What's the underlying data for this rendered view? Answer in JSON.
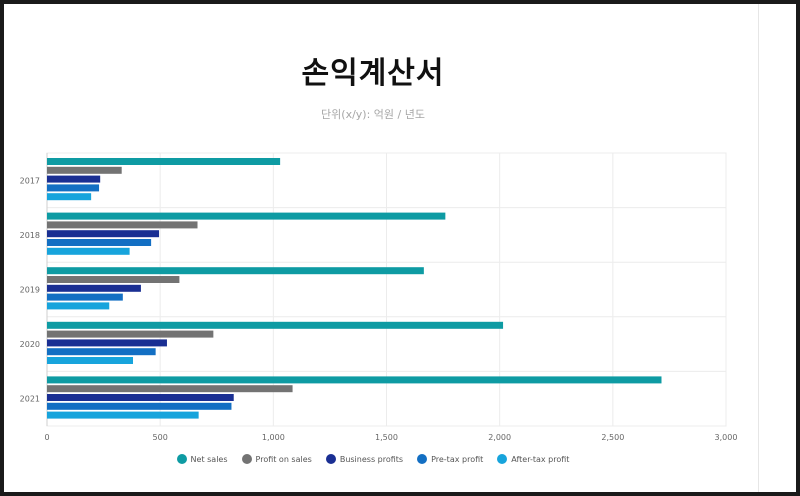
{
  "title": "손익계산서",
  "subtitle": "단위(x/y): 억원 / 년도",
  "colors": {
    "net_sales": "#0E9BA3",
    "profit_on_sales": "#737373",
    "business_profits": "#1A2F93",
    "pre_tax_profit": "#136FC3",
    "after_tax_profit": "#17A4DC"
  },
  "chart_data": {
    "type": "bar",
    "orientation": "horizontal",
    "categories": [
      "2017",
      "2018",
      "2019",
      "2020",
      "2021"
    ],
    "series": [
      {
        "name": "Net sales",
        "color": "#0E9BA3",
        "values": [
          1030,
          1760,
          1665,
          2015,
          2715
        ]
      },
      {
        "name": "Profit on sales",
        "color": "#737373",
        "values": [
          330,
          665,
          585,
          735,
          1085
        ]
      },
      {
        "name": "Business profits",
        "color": "#1A2F93",
        "values": [
          235,
          495,
          415,
          530,
          825
        ]
      },
      {
        "name": "Pre-tax profit",
        "color": "#136FC3",
        "values": [
          230,
          460,
          335,
          480,
          815
        ]
      },
      {
        "name": "After-tax profit",
        "color": "#17A4DC",
        "values": [
          195,
          365,
          275,
          380,
          670
        ]
      }
    ],
    "xlim": [
      0,
      3000
    ],
    "xticks": [
      0,
      500,
      1000,
      1500,
      2000,
      2500,
      3000
    ],
    "xtick_labels": [
      "0",
      "500",
      "1,000",
      "1,500",
      "2,000",
      "2,500",
      "3,000"
    ],
    "grid": true,
    "legend_position": "bottom"
  }
}
